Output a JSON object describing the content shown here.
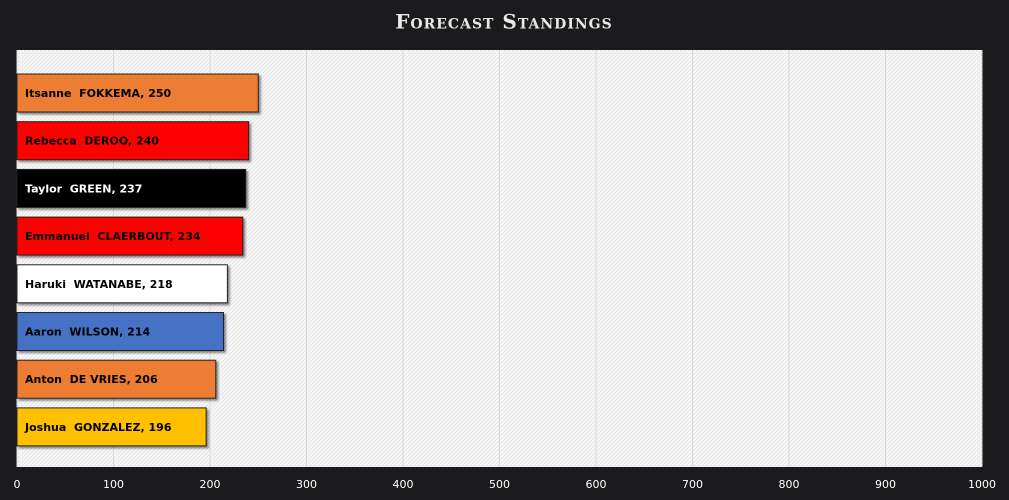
{
  "chart_data": {
    "type": "hbar",
    "title": "Forecast Standings",
    "values": [
      250,
      240,
      237,
      234,
      218,
      214,
      206,
      196
    ],
    "value_labels": [
      "Itsanne  FOKKEMA, 250",
      "Rebecca  DEROO, 240",
      "Taylor  GREEN, 237",
      "Emmanuel  CLAERBOUT, 234",
      "Haruki  WATANABE, 218",
      "Aaron  WILSON, 214",
      "Anton  DE VRIES, 206",
      "Joshua  GONZALEZ, 196"
    ],
    "colors": [
      "#ed7d31",
      "#ff0000",
      "#000000",
      "#ff0000",
      "#ffffff",
      "#4472c4",
      "#ed7d31",
      "#ffc000"
    ],
    "xlim": [
      0,
      1000
    ],
    "xticks": [
      0,
      100,
      200,
      300,
      400,
      500,
      600,
      700,
      800,
      900,
      1000
    ],
    "grid": true
  }
}
